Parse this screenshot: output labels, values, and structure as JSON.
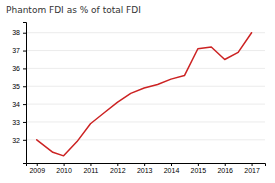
{
  "chart_data": {
    "type": "line",
    "title": "Phantom FDI as % of total FDI",
    "x": [
      2009,
      2009.6,
      2010,
      2010.5,
      2011,
      2011.5,
      2012,
      2012.5,
      2013,
      2013.5,
      2014,
      2014.5,
      2015,
      2015.5,
      2016,
      2016.5,
      2017
    ],
    "values": [
      32.0,
      31.3,
      31.1,
      31.9,
      32.9,
      33.5,
      34.1,
      34.6,
      34.9,
      35.1,
      35.4,
      35.6,
      37.1,
      37.2,
      36.5,
      36.9,
      38.0
    ],
    "color": "#cc2222",
    "xlim": [
      2008.6,
      2017.5
    ],
    "ylim": [
      30.7,
      38.6
    ],
    "xticks": [
      2009,
      2010,
      2011,
      2012,
      2013,
      2014,
      2015,
      2016,
      2017
    ],
    "yticks": [
      32,
      33,
      34,
      35,
      36,
      37,
      38
    ],
    "grid": "y"
  }
}
